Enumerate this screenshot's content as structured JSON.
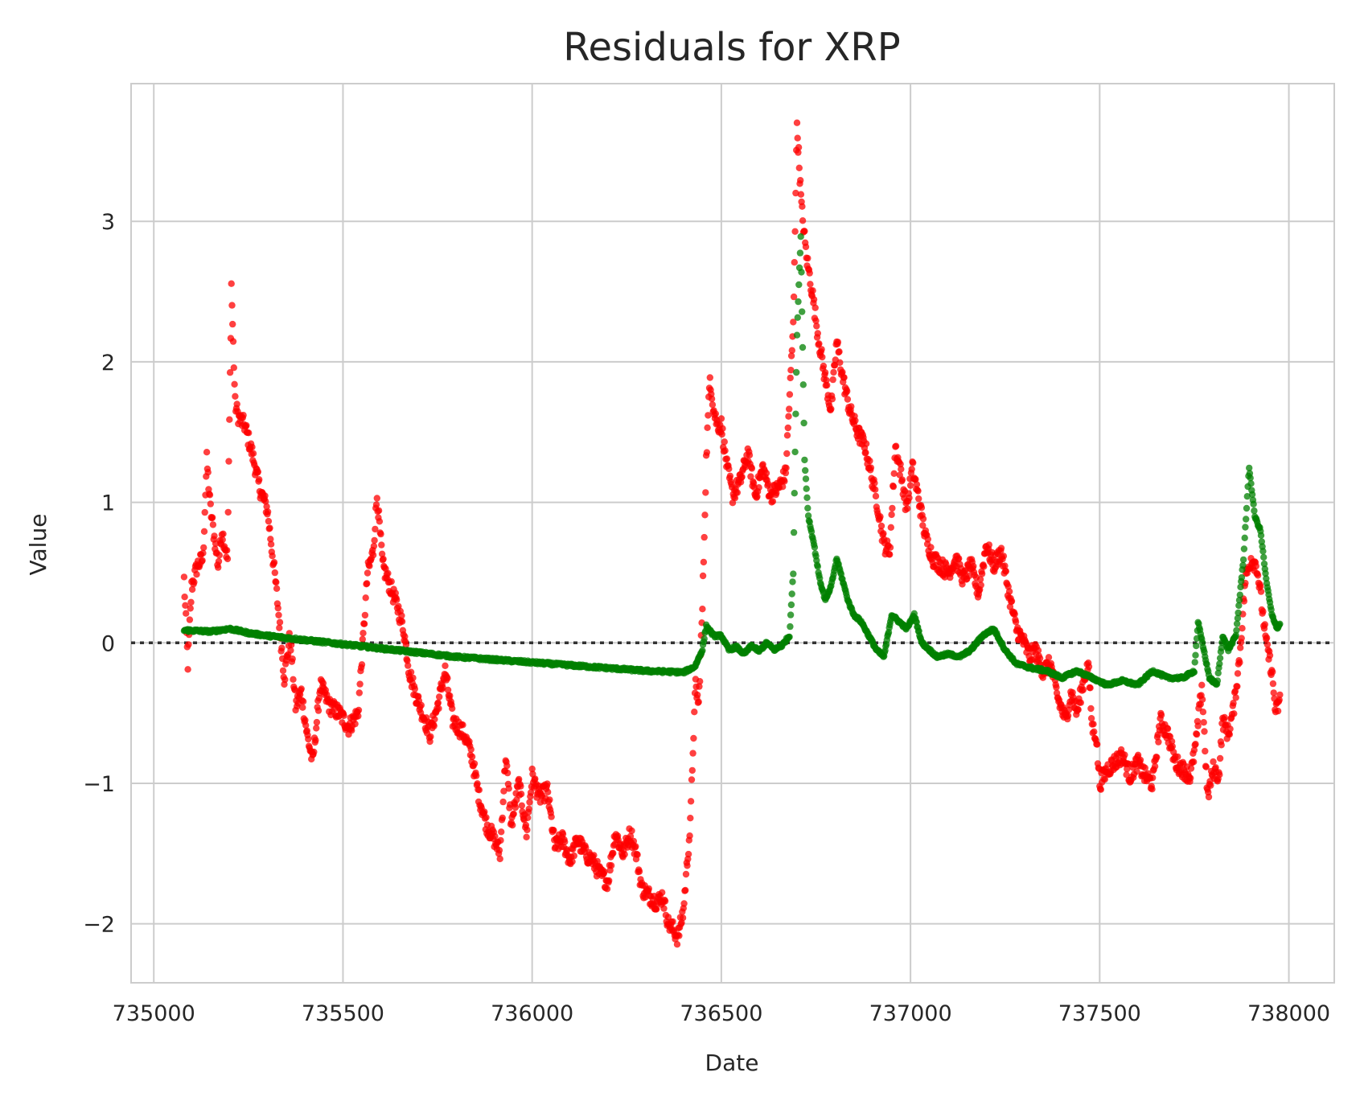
{
  "chart_data": {
    "type": "scatter",
    "title": "Residuals for XRP",
    "xlabel": "Date",
    "ylabel": "Value",
    "xlim": [
      734940,
      738120
    ],
    "ylim": [
      -2.42,
      3.98
    ],
    "x_ticks": [
      735000,
      735500,
      736000,
      736500,
      737000,
      737500,
      738000
    ],
    "x_tick_labels": [
      "735000",
      "735500",
      "736000",
      "736500",
      "737000",
      "737500",
      "738000"
    ],
    "y_ticks": [
      -2,
      -1,
      0,
      1,
      2,
      3
    ],
    "y_tick_labels": [
      "−2",
      "−1",
      "0",
      "1",
      "2",
      "3"
    ],
    "grid": true,
    "reference_line": {
      "y": 0,
      "style": "dotted",
      "color": "#333333"
    },
    "series": [
      {
        "color": "#ff0000",
        "anchors": [
          [
            735080,
            0.45
          ],
          [
            735090,
            -0.15
          ],
          [
            735100,
            0.4
          ],
          [
            735115,
            0.55
          ],
          [
            735130,
            0.6
          ],
          [
            735140,
            1.3
          ],
          [
            735150,
            0.95
          ],
          [
            735160,
            0.75
          ],
          [
            735170,
            0.55
          ],
          [
            735180,
            0.8
          ],
          [
            735195,
            0.6
          ],
          [
            735205,
            2.55
          ],
          [
            735215,
            1.7
          ],
          [
            735225,
            1.6
          ],
          [
            735240,
            1.55
          ],
          [
            735260,
            1.35
          ],
          [
            735280,
            1.1
          ],
          [
            735300,
            0.95
          ],
          [
            735315,
            0.6
          ],
          [
            735325,
            0.35
          ],
          [
            735335,
            0.05
          ],
          [
            735345,
            -0.25
          ],
          [
            735360,
            0.05
          ],
          [
            735375,
            -0.45
          ],
          [
            735390,
            -0.35
          ],
          [
            735405,
            -0.65
          ],
          [
            735420,
            -0.85
          ],
          [
            735440,
            -0.3
          ],
          [
            735465,
            -0.45
          ],
          [
            735490,
            -0.5
          ],
          [
            735515,
            -0.6
          ],
          [
            735540,
            -0.5
          ],
          [
            735555,
            0.1
          ],
          [
            735565,
            0.5
          ],
          [
            735580,
            0.65
          ],
          [
            735590,
            1.05
          ],
          [
            735605,
            0.55
          ],
          [
            735625,
            0.4
          ],
          [
            735645,
            0.25
          ],
          [
            735660,
            0.1
          ],
          [
            735675,
            -0.2
          ],
          [
            735690,
            -0.35
          ],
          [
            735710,
            -0.5
          ],
          [
            735730,
            -0.65
          ],
          [
            735750,
            -0.45
          ],
          [
            735770,
            -0.2
          ],
          [
            735790,
            -0.55
          ],
          [
            735820,
            -0.65
          ],
          [
            735840,
            -0.8
          ],
          [
            735860,
            -1.1
          ],
          [
            735880,
            -1.3
          ],
          [
            735900,
            -1.4
          ],
          [
            735915,
            -1.5
          ],
          [
            735930,
            -0.8
          ],
          [
            735945,
            -1.3
          ],
          [
            735965,
            -1.0
          ],
          [
            735985,
            -1.35
          ],
          [
            736000,
            -0.95
          ],
          [
            736020,
            -1.1
          ],
          [
            736040,
            -1.05
          ],
          [
            736060,
            -1.45
          ],
          [
            736080,
            -1.4
          ],
          [
            736100,
            -1.55
          ],
          [
            736120,
            -1.4
          ],
          [
            736140,
            -1.5
          ],
          [
            736160,
            -1.55
          ],
          [
            736180,
            -1.65
          ],
          [
            736200,
            -1.7
          ],
          [
            736220,
            -1.35
          ],
          [
            736240,
            -1.5
          ],
          [
            736260,
            -1.35
          ],
          [
            736275,
            -1.5
          ],
          [
            736290,
            -1.75
          ],
          [
            736310,
            -1.8
          ],
          [
            736330,
            -1.85
          ],
          [
            736345,
            -1.8
          ],
          [
            736360,
            -2.0
          ],
          [
            736375,
            -2.05
          ],
          [
            736385,
            -2.1
          ],
          [
            736400,
            -1.9
          ],
          [
            736410,
            -1.55
          ],
          [
            736418,
            -1.3
          ],
          [
            736425,
            -0.75
          ],
          [
            736432,
            -0.3
          ],
          [
            736440,
            -0.45
          ],
          [
            736450,
            0.25
          ],
          [
            736460,
            1.3
          ],
          [
            736470,
            1.9
          ],
          [
            736480,
            1.65
          ],
          [
            736490,
            1.55
          ],
          [
            736500,
            1.55
          ],
          [
            736515,
            1.25
          ],
          [
            736530,
            1.05
          ],
          [
            736550,
            1.15
          ],
          [
            736570,
            1.35
          ],
          [
            736590,
            1.05
          ],
          [
            736610,
            1.25
          ],
          [
            736630,
            1.05
          ],
          [
            736650,
            1.1
          ],
          [
            736670,
            1.2
          ],
          [
            736690,
            2.25
          ],
          [
            736700,
            3.7
          ],
          [
            736712,
            3.1
          ],
          [
            736725,
            2.75
          ],
          [
            736740,
            2.5
          ],
          [
            736755,
            2.2
          ],
          [
            736770,
            1.95
          ],
          [
            736790,
            1.65
          ],
          [
            736805,
            2.15
          ],
          [
            736820,
            1.9
          ],
          [
            736840,
            1.65
          ],
          [
            736860,
            1.5
          ],
          [
            736880,
            1.4
          ],
          [
            736900,
            1.15
          ],
          [
            736915,
            0.95
          ],
          [
            736930,
            0.7
          ],
          [
            736945,
            0.65
          ],
          [
            736960,
            1.4
          ],
          [
            736975,
            1.2
          ],
          [
            736990,
            0.95
          ],
          [
            737005,
            1.25
          ],
          [
            737020,
            1.05
          ],
          [
            737040,
            0.75
          ],
          [
            737060,
            0.6
          ],
          [
            737080,
            0.55
          ],
          [
            737100,
            0.5
          ],
          [
            737120,
            0.6
          ],
          [
            737140,
            0.45
          ],
          [
            737160,
            0.55
          ],
          [
            737180,
            0.35
          ],
          [
            737200,
            0.7
          ],
          [
            737220,
            0.55
          ],
          [
            737240,
            0.65
          ],
          [
            737260,
            0.35
          ],
          [
            737280,
            0.1
          ],
          [
            737300,
            0.0
          ],
          [
            737315,
            -0.1
          ],
          [
            737330,
            -0.05
          ],
          [
            737350,
            -0.2
          ],
          [
            737370,
            -0.15
          ],
          [
            737390,
            -0.4
          ],
          [
            737410,
            -0.55
          ],
          [
            737425,
            -0.35
          ],
          [
            737440,
            -0.5
          ],
          [
            737455,
            -0.3
          ],
          [
            737470,
            -0.15
          ],
          [
            737480,
            -0.6
          ],
          [
            737490,
            -0.65
          ],
          [
            737500,
            -1.0
          ],
          [
            737520,
            -0.9
          ],
          [
            737540,
            -0.85
          ],
          [
            737560,
            -0.8
          ],
          [
            737580,
            -0.95
          ],
          [
            737600,
            -0.85
          ],
          [
            737620,
            -0.95
          ],
          [
            737640,
            -1.0
          ],
          [
            737660,
            -0.55
          ],
          [
            737680,
            -0.65
          ],
          [
            737700,
            -0.85
          ],
          [
            737720,
            -0.9
          ],
          [
            737740,
            -0.95
          ],
          [
            737755,
            -0.7
          ],
          [
            737770,
            -0.3
          ],
          [
            737785,
            -1.1
          ],
          [
            737800,
            -0.9
          ],
          [
            737815,
            -0.95
          ],
          [
            737825,
            -0.55
          ],
          [
            737840,
            -0.65
          ],
          [
            737855,
            -0.45
          ],
          [
            737870,
            -0.1
          ],
          [
            737885,
            0.45
          ],
          [
            737900,
            0.6
          ],
          [
            737915,
            0.55
          ],
          [
            737925,
            0.35
          ],
          [
            737940,
            0.0
          ],
          [
            737955,
            -0.2
          ],
          [
            737965,
            -0.5
          ],
          [
            737978,
            -0.4
          ]
        ]
      },
      {
        "color": "#008000",
        "anchors": [
          [
            735080,
            0.09
          ],
          [
            735150,
            0.08
          ],
          [
            735200,
            0.1
          ],
          [
            735250,
            0.07
          ],
          [
            735300,
            0.05
          ],
          [
            735400,
            0.02
          ],
          [
            735500,
            -0.01
          ],
          [
            735600,
            -0.04
          ],
          [
            735700,
            -0.07
          ],
          [
            735800,
            -0.1
          ],
          [
            735900,
            -0.12
          ],
          [
            736000,
            -0.14
          ],
          [
            736100,
            -0.16
          ],
          [
            736200,
            -0.18
          ],
          [
            736300,
            -0.2
          ],
          [
            736400,
            -0.21
          ],
          [
            736430,
            -0.17
          ],
          [
            736450,
            -0.05
          ],
          [
            736460,
            0.12
          ],
          [
            736480,
            0.05
          ],
          [
            736500,
            0.05
          ],
          [
            736520,
            -0.05
          ],
          [
            736540,
            -0.03
          ],
          [
            736560,
            -0.08
          ],
          [
            736580,
            -0.02
          ],
          [
            736600,
            -0.06
          ],
          [
            736620,
            0.0
          ],
          [
            736640,
            -0.05
          ],
          [
            736660,
            -0.02
          ],
          [
            736680,
            0.05
          ],
          [
            736690,
            0.5
          ],
          [
            736700,
            2.2
          ],
          [
            736710,
            2.9
          ],
          [
            736720,
            1.3
          ],
          [
            736730,
            0.9
          ],
          [
            736745,
            0.7
          ],
          [
            736760,
            0.45
          ],
          [
            736775,
            0.3
          ],
          [
            736790,
            0.4
          ],
          [
            736805,
            0.6
          ],
          [
            736820,
            0.45
          ],
          [
            736835,
            0.3
          ],
          [
            736850,
            0.2
          ],
          [
            736870,
            0.15
          ],
          [
            736890,
            0.05
          ],
          [
            736910,
            -0.05
          ],
          [
            736930,
            -0.1
          ],
          [
            736950,
            0.2
          ],
          [
            736970,
            0.15
          ],
          [
            736990,
            0.1
          ],
          [
            737010,
            0.2
          ],
          [
            737030,
            0.0
          ],
          [
            737050,
            -0.05
          ],
          [
            737070,
            -0.1
          ],
          [
            737100,
            -0.08
          ],
          [
            737130,
            -0.1
          ],
          [
            737160,
            -0.05
          ],
          [
            737190,
            0.05
          ],
          [
            737220,
            0.1
          ],
          [
            737250,
            -0.05
          ],
          [
            737280,
            -0.15
          ],
          [
            737320,
            -0.18
          ],
          [
            737360,
            -0.2
          ],
          [
            737400,
            -0.25
          ],
          [
            737440,
            -0.2
          ],
          [
            737480,
            -0.25
          ],
          [
            737520,
            -0.3
          ],
          [
            737560,
            -0.27
          ],
          [
            737600,
            -0.3
          ],
          [
            737640,
            -0.2
          ],
          [
            737680,
            -0.25
          ],
          [
            737720,
            -0.25
          ],
          [
            737750,
            -0.2
          ],
          [
            737760,
            0.15
          ],
          [
            737775,
            -0.05
          ],
          [
            737790,
            -0.25
          ],
          [
            737810,
            -0.3
          ],
          [
            737825,
            0.05
          ],
          [
            737840,
            -0.05
          ],
          [
            737860,
            0.05
          ],
          [
            737880,
            0.6
          ],
          [
            737895,
            1.25
          ],
          [
            737910,
            0.9
          ],
          [
            737925,
            0.8
          ],
          [
            737940,
            0.45
          ],
          [
            737955,
            0.2
          ],
          [
            737970,
            0.1
          ],
          [
            737978,
            0.15
          ]
        ]
      }
    ]
  }
}
